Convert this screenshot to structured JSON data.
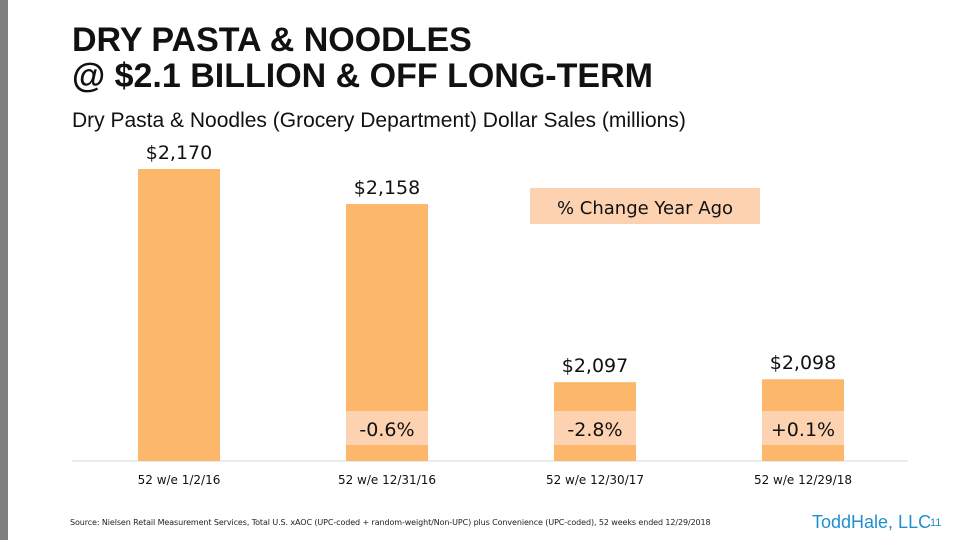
{
  "slide": {
    "title_line1": "DRY PASTA & NOODLES",
    "title_line2": "@ $2.1 BILLION & OFF LONG-TERM",
    "source": "Source: Nielsen Retail Measurement Services, Total U.S. xAOC (UPC-coded + random-weight/Non-UPC) plus Convenience (UPC-coded), 52 weeks ended 12/29/2018",
    "brand": "ToddHale, LLC",
    "page_number": "11"
  },
  "colors": {
    "bar": "#fdb76a",
    "pct_box": "#fdd2b0",
    "axis": "#d9d9d9",
    "accent": "#1f8fd0",
    "side_bar": "#7f7f7f"
  },
  "chart_data": {
    "type": "bar",
    "title": "Dry Pasta & Noodles (Grocery Department) Dollar Sales (millions)",
    "categories": [
      "52 w/e 1/2/16",
      "52 w/e 12/31/16",
      "52 w/e 12/30/17",
      "52 w/e 12/29/18"
    ],
    "values": [
      2170,
      2158,
      2097,
      2098
    ],
    "value_labels": [
      "$2,170",
      "$2,158",
      "$2,097",
      "$2,098"
    ],
    "ylim": [
      2070,
      2170
    ],
    "pct_change_label": "% Change Year Ago",
    "pct_change": [
      null,
      "-0.6%",
      "-2.8%",
      "+0.1%"
    ]
  }
}
